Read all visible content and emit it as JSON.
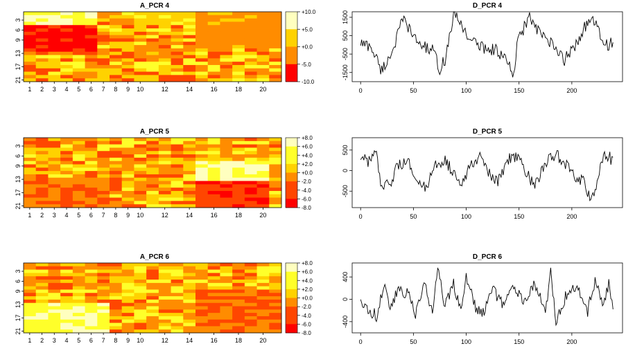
{
  "palette": [
    "#FF0000",
    "#FF4600",
    "#FF8C00",
    "#FFD200",
    "#FFFF2A",
    "#FFFFBF"
  ],
  "chart_data": [
    {
      "type": "heatmap",
      "title": "A_PCR 4",
      "x_ticks": [
        "1",
        "2",
        "3",
        "4",
        "5",
        "6",
        "7",
        "8",
        "9",
        "10",
        "12",
        "14",
        "16",
        "18",
        "20"
      ],
      "y_ticks": [
        "3",
        "6",
        "9",
        "13",
        "17",
        "21"
      ],
      "legend_ticks": [
        "+10.0",
        "+5.0",
        "+0.0",
        "-5.0",
        "-10.0"
      ],
      "value_range": [
        -10,
        10
      ],
      "n_cols": 21,
      "n_rows": 21,
      "hot_blocks": [
        {
          "rows": [
            1,
            5
          ],
          "cols": [
            1,
            6
          ],
          "value": 6.5
        },
        {
          "rows": [
            5,
            12
          ],
          "cols": [
            1,
            6
          ],
          "value": -7.5
        },
        {
          "rows": [
            1,
            11
          ],
          "cols": [
            15,
            21
          ],
          "value": -1.5
        },
        {
          "rows": [
            1,
            4
          ],
          "cols": [
            10,
            14
          ],
          "value": 2.0
        }
      ]
    },
    {
      "type": "line",
      "title": "D_PCR 4",
      "x_ticks": [
        "0",
        "50",
        "100",
        "150",
        "200"
      ],
      "y_ticks": [
        "-1500",
        "-500",
        "500",
        "1500"
      ],
      "xlim": [
        -8,
        248
      ],
      "ylim": [
        -2000,
        1800
      ],
      "n_points": 240,
      "anchors": [
        [
          0,
          100
        ],
        [
          10,
          -100
        ],
        [
          20,
          -1400
        ],
        [
          25,
          -900
        ],
        [
          30,
          -300
        ],
        [
          35,
          500
        ],
        [
          40,
          1400
        ],
        [
          45,
          1000
        ],
        [
          50,
          400
        ],
        [
          60,
          -100
        ],
        [
          68,
          -300
        ],
        [
          75,
          -1300
        ],
        [
          80,
          -800
        ],
        [
          88,
          1600
        ],
        [
          95,
          1200
        ],
        [
          100,
          600
        ],
        [
          110,
          0
        ],
        [
          120,
          -200
        ],
        [
          130,
          -300
        ],
        [
          135,
          -700
        ],
        [
          140,
          -1000
        ],
        [
          145,
          -1800
        ],
        [
          148,
          0
        ],
        [
          155,
          1000
        ],
        [
          160,
          1500
        ],
        [
          168,
          700
        ],
        [
          175,
          400
        ],
        [
          185,
          -300
        ],
        [
          193,
          -800
        ],
        [
          200,
          -300
        ],
        [
          210,
          700
        ],
        [
          215,
          1300
        ],
        [
          222,
          1200
        ],
        [
          228,
          300
        ],
        [
          235,
          0
        ],
        [
          240,
          200
        ]
      ]
    },
    {
      "type": "heatmap",
      "title": "A_PCR 5",
      "x_ticks": [
        "1",
        "2",
        "3",
        "4",
        "5",
        "6",
        "7",
        "8",
        "9",
        "10",
        "12",
        "14",
        "16",
        "18",
        "20"
      ],
      "y_ticks": [
        "3",
        "6",
        "9",
        "13",
        "17",
        "21"
      ],
      "legend_ticks": [
        "+8.0",
        "+6.0",
        "+4.0",
        "+2.0",
        "+0.0",
        "-2.0",
        "-4.0",
        "-6.0",
        "-8.0"
      ],
      "value_range": [
        -8,
        8
      ],
      "n_cols": 21,
      "n_rows": 21,
      "hot_blocks": [
        {
          "rows": [
            8,
            13
          ],
          "cols": [
            15,
            20
          ],
          "value": 5.5
        },
        {
          "rows": [
            14,
            21
          ],
          "cols": [
            15,
            20
          ],
          "value": -5.0
        },
        {
          "rows": [
            13,
            21
          ],
          "cols": [
            1,
            7
          ],
          "value": -2.5
        }
      ]
    },
    {
      "type": "line",
      "title": "D_PCR 5",
      "x_ticks": [
        "0",
        "50",
        "100",
        "150",
        "200"
      ],
      "y_ticks": [
        "-500",
        "0",
        "500"
      ],
      "xlim": [
        -8,
        248
      ],
      "ylim": [
        -900,
        800
      ],
      "n_points": 240,
      "anchors": [
        [
          0,
          300
        ],
        [
          8,
          200
        ],
        [
          14,
          500
        ],
        [
          20,
          -500
        ],
        [
          28,
          -300
        ],
        [
          35,
          100
        ],
        [
          45,
          200
        ],
        [
          55,
          -200
        ],
        [
          62,
          -500
        ],
        [
          70,
          100
        ],
        [
          80,
          300
        ],
        [
          88,
          -100
        ],
        [
          95,
          -400
        ],
        [
          105,
          200
        ],
        [
          115,
          400
        ],
        [
          122,
          -100
        ],
        [
          130,
          -300
        ],
        [
          140,
          300
        ],
        [
          150,
          400
        ],
        [
          158,
          -100
        ],
        [
          165,
          -400
        ],
        [
          175,
          200
        ],
        [
          185,
          400
        ],
        [
          195,
          100
        ],
        [
          205,
          -200
        ],
        [
          212,
          -300
        ],
        [
          218,
          -700
        ],
        [
          222,
          -500
        ],
        [
          228,
          200
        ],
        [
          233,
          400
        ],
        [
          240,
          200
        ]
      ]
    },
    {
      "type": "heatmap",
      "title": "A_PCR 6",
      "x_ticks": [
        "1",
        "2",
        "3",
        "4",
        "5",
        "6",
        "7",
        "8",
        "9",
        "10",
        "12",
        "14",
        "16",
        "18",
        "20"
      ],
      "y_ticks": [
        "3",
        "6",
        "9",
        "13",
        "17",
        "21"
      ],
      "legend_ticks": [
        "+8.0",
        "+6.0",
        "+4.0",
        "+2.0",
        "+0.0",
        "-2.0",
        "-4.0",
        "-6.0",
        "-8.0"
      ],
      "value_range": [
        -8,
        8
      ],
      "n_cols": 21,
      "n_rows": 21,
      "hot_blocks": [
        {
          "rows": [
            13,
            21
          ],
          "cols": [
            1,
            7
          ],
          "value": 5.0
        },
        {
          "rows": [
            9,
            21
          ],
          "cols": [
            15,
            21
          ],
          "value": -3.0
        }
      ]
    },
    {
      "type": "line",
      "title": "D_PCR 6",
      "x_ticks": [
        "0",
        "50",
        "100",
        "150",
        "200"
      ],
      "y_ticks": [
        "-400",
        "0",
        "400"
      ],
      "xlim": [
        -8,
        248
      ],
      "ylim": [
        -600,
        650
      ],
      "n_points": 240,
      "anchors": [
        [
          0,
          0
        ],
        [
          8,
          -200
        ],
        [
          15,
          -300
        ],
        [
          22,
          300
        ],
        [
          28,
          -200
        ],
        [
          35,
          200
        ],
        [
          45,
          100
        ],
        [
          52,
          -300
        ],
        [
          60,
          300
        ],
        [
          68,
          -200
        ],
        [
          73,
          500
        ],
        [
          80,
          -100
        ],
        [
          88,
          300
        ],
        [
          95,
          -200
        ],
        [
          100,
          400
        ],
        [
          108,
          -100
        ],
        [
          115,
          -300
        ],
        [
          125,
          200
        ],
        [
          135,
          -100
        ],
        [
          145,
          200
        ],
        [
          155,
          0
        ],
        [
          165,
          300
        ],
        [
          175,
          -200
        ],
        [
          180,
          500
        ],
        [
          185,
          -400
        ],
        [
          195,
          100
        ],
        [
          205,
          200
        ],
        [
          215,
          -200
        ],
        [
          222,
          300
        ],
        [
          230,
          -100
        ],
        [
          235,
          300
        ],
        [
          240,
          -200
        ]
      ]
    }
  ]
}
